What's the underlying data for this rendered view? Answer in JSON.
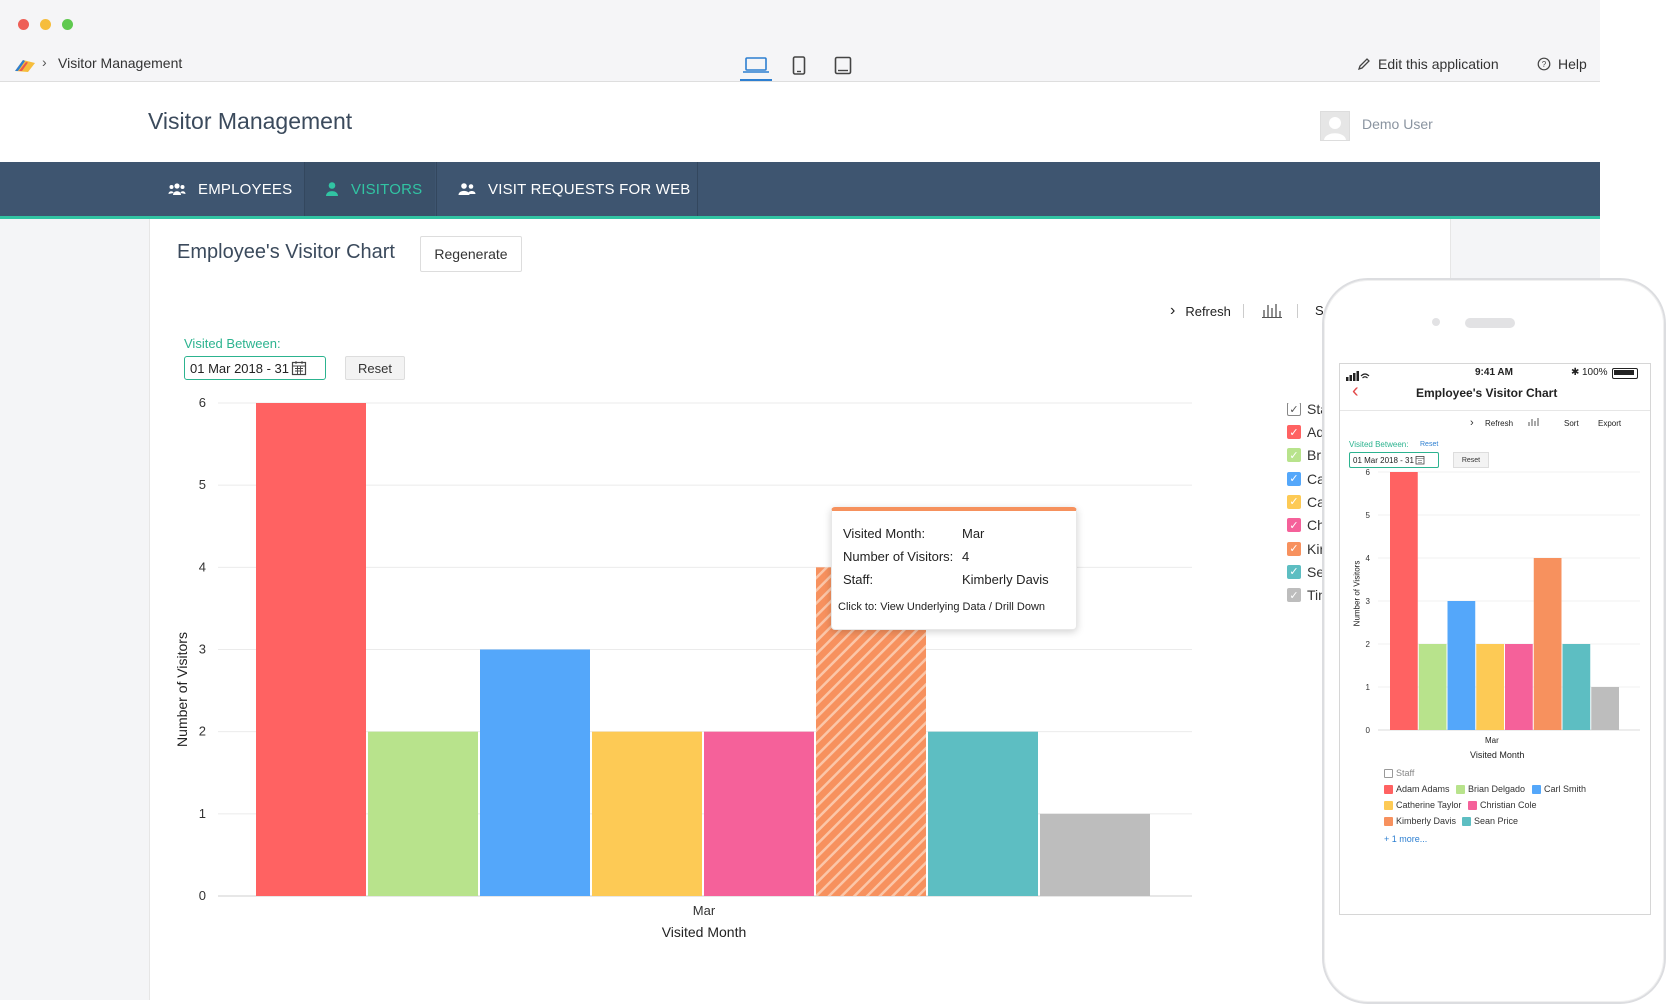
{
  "window": {
    "traffic_lights": [
      "#ee5f57",
      "#f6bd3c",
      "#5fc94f"
    ]
  },
  "toolbar": {
    "breadcrumb_app": "Visitor Management",
    "edit_label": "Edit this application",
    "help_label": "Help"
  },
  "header": {
    "app_title": "Visitor Management",
    "user_name": "Demo User"
  },
  "nav": {
    "tabs": [
      {
        "label": "EMPLOYEES",
        "icon": "group-icon",
        "active": false
      },
      {
        "label": "VISITORS",
        "icon": "person-icon",
        "active": true
      },
      {
        "label": "VISIT REQUESTS FOR WEB",
        "icon": "people-icon",
        "active": false
      }
    ],
    "accent": "#31c4a3"
  },
  "report": {
    "title": "Employee's Visitor Chart",
    "regenerate_label": "Regenerate",
    "refresh_label": "Refresh",
    "sort_label_clipped": "So",
    "filter_label": "Visited Between:",
    "filter_value": "01 Mar 2018 - 31",
    "reset_label": "Reset"
  },
  "legend": {
    "header": "Sta",
    "items": [
      {
        "label": "Ad",
        "color": "#ff6262"
      },
      {
        "label": "Bri",
        "color": "#b8e38c"
      },
      {
        "label": "Ca",
        "color": "#54a7fa"
      },
      {
        "label": "Ca",
        "color": "#fdca55"
      },
      {
        "label": "Ch",
        "color": "#f5619a"
      },
      {
        "label": "Kir",
        "color": "#f7915e"
      },
      {
        "label": "Se",
        "color": "#5dbec2"
      },
      {
        "label": "Tin",
        "color": "#bdbdbd"
      }
    ]
  },
  "chart_data": {
    "type": "bar",
    "categories": [
      "Mar"
    ],
    "xlabel": "Visited Month",
    "ylabel": "Number of Visitors",
    "ylim": [
      0,
      6
    ],
    "yticks": [
      0,
      1,
      2,
      3,
      4,
      5,
      6
    ],
    "grid": true,
    "legend_position": "right",
    "series": [
      {
        "name": "Adam Adams",
        "values": [
          6
        ],
        "color": "#ff6262"
      },
      {
        "name": "Brian Delgado",
        "values": [
          2
        ],
        "color": "#b8e38c"
      },
      {
        "name": "Carl Smith",
        "values": [
          3
        ],
        "color": "#54a7fa"
      },
      {
        "name": "Catherine Taylor",
        "values": [
          2
        ],
        "color": "#fdca55"
      },
      {
        "name": "Christian Cole",
        "values": [
          2
        ],
        "color": "#f5619a"
      },
      {
        "name": "Kimberly Davis",
        "values": [
          4
        ],
        "color": "#f7915e",
        "highlighted": true
      },
      {
        "name": "Sean Price",
        "values": [
          2
        ],
        "color": "#5dbec2"
      },
      {
        "name": "Tim",
        "values": [
          1
        ],
        "color": "#bdbdbd"
      }
    ]
  },
  "tooltip": {
    "month_label": "Visited Month:",
    "month_value": "Mar",
    "count_label": "Number of Visitors:",
    "count_value": "4",
    "staff_label": "Staff:",
    "staff_value": "Kimberly Davis",
    "click_prefix": "Click to:",
    "click_action": "View Underlying Data / Drill Down"
  },
  "mobile": {
    "status_time": "9:41 AM",
    "status_battery": "100%",
    "title": "Employee's Visitor Chart",
    "refresh_label": "Refresh",
    "sort_label": "Sort",
    "export_label": "Export",
    "filter_label": "Visited Between:",
    "filter_reset_link": "Reset",
    "filter_value": "01 Mar 2018 - 31",
    "reset_label": "Reset",
    "ylabel": "Number of Visitors",
    "xlabel": "Visited Month",
    "category": "Mar",
    "legend_header": "Staff",
    "legend_items": [
      "Adam Adams",
      "Brian Delgado",
      "Carl Smith",
      "Catherine Taylor",
      "Christian Cole",
      "Kimberly Davis",
      "Sean Price"
    ],
    "more_link": "+ 1 more..."
  }
}
